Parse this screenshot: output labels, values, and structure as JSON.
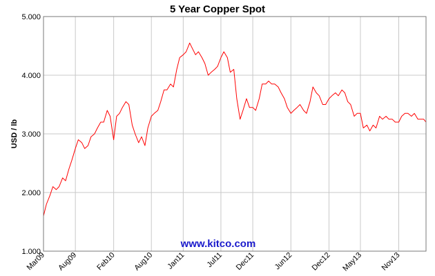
{
  "chart_data": {
    "type": "line",
    "title": "5 Year Copper Spot",
    "xlabel": "",
    "ylabel": "USD / lb",
    "ylim": [
      1.0,
      5.0
    ],
    "yticks": [
      "1.000",
      "2.000",
      "3.000",
      "4.000",
      "5.000"
    ],
    "xlim": [
      "2009-03-01",
      "2014-03-12"
    ],
    "xticks": [
      {
        "label": "Mar09",
        "date": "2009-03-01"
      },
      {
        "label": "Aug09",
        "date": "2009-08-01"
      },
      {
        "label": "Feb10",
        "date": "2010-02-01"
      },
      {
        "label": "Aug10",
        "date": "2010-08-01"
      },
      {
        "label": "Jan11",
        "date": "2011-01-01"
      },
      {
        "label": "Jul11",
        "date": "2011-07-01"
      },
      {
        "label": "Dec11",
        "date": "2011-12-01"
      },
      {
        "label": "Jun12",
        "date": "2012-06-01"
      },
      {
        "label": "Dec12",
        "date": "2012-12-01"
      },
      {
        "label": "May13",
        "date": "2013-05-01"
      },
      {
        "label": "Nov13",
        "date": "2013-11-01"
      }
    ],
    "grid": true,
    "legend": "none",
    "series": [
      {
        "color": "#ff0000",
        "x": [
          "2009-03-01",
          "2009-03-15",
          "2009-04-01",
          "2009-04-15",
          "2009-05-01",
          "2009-05-15",
          "2009-06-01",
          "2009-06-15",
          "2009-07-01",
          "2009-07-15",
          "2009-08-01",
          "2009-08-15",
          "2009-09-01",
          "2009-09-15",
          "2009-10-01",
          "2009-10-15",
          "2009-11-01",
          "2009-11-15",
          "2009-12-01",
          "2009-12-15",
          "2010-01-01",
          "2010-01-15",
          "2010-02-01",
          "2010-02-15",
          "2010-03-01",
          "2010-03-15",
          "2010-04-01",
          "2010-04-15",
          "2010-05-01",
          "2010-05-15",
          "2010-06-01",
          "2010-06-15",
          "2010-07-01",
          "2010-07-15",
          "2010-08-01",
          "2010-08-15",
          "2010-09-01",
          "2010-09-15",
          "2010-10-01",
          "2010-10-15",
          "2010-11-01",
          "2010-11-15",
          "2010-12-01",
          "2010-12-15",
          "2011-01-01",
          "2011-01-15",
          "2011-02-01",
          "2011-02-15",
          "2011-03-01",
          "2011-03-15",
          "2011-04-01",
          "2011-04-15",
          "2011-05-01",
          "2011-05-15",
          "2011-06-01",
          "2011-06-15",
          "2011-07-01",
          "2011-07-15",
          "2011-08-01",
          "2011-08-15",
          "2011-09-01",
          "2011-09-15",
          "2011-10-01",
          "2011-10-15",
          "2011-11-01",
          "2011-11-15",
          "2011-12-01",
          "2011-12-15",
          "2012-01-01",
          "2012-01-15",
          "2012-02-01",
          "2012-02-15",
          "2012-03-01",
          "2012-03-15",
          "2012-04-01",
          "2012-04-15",
          "2012-05-01",
          "2012-05-15",
          "2012-06-01",
          "2012-06-15",
          "2012-07-01",
          "2012-07-15",
          "2012-08-01",
          "2012-08-15",
          "2012-09-01",
          "2012-09-15",
          "2012-10-01",
          "2012-10-15",
          "2012-11-01",
          "2012-11-15",
          "2012-12-01",
          "2012-12-15",
          "2013-01-01",
          "2013-01-15",
          "2013-02-01",
          "2013-02-15",
          "2013-03-01",
          "2013-03-15",
          "2013-04-01",
          "2013-04-15",
          "2013-05-01",
          "2013-05-15",
          "2013-06-01",
          "2013-06-15",
          "2013-07-01",
          "2013-07-15",
          "2013-08-01",
          "2013-08-15",
          "2013-09-01",
          "2013-09-15",
          "2013-10-01",
          "2013-10-15",
          "2013-11-01",
          "2013-11-15",
          "2013-12-01",
          "2013-12-15",
          "2014-01-01",
          "2014-01-15",
          "2014-02-01",
          "2014-02-15",
          "2014-03-01",
          "2014-03-12"
        ],
        "y": [
          1.6,
          1.8,
          1.95,
          2.1,
          2.05,
          2.1,
          2.25,
          2.2,
          2.4,
          2.55,
          2.75,
          2.9,
          2.85,
          2.75,
          2.8,
          2.95,
          3.0,
          3.1,
          3.2,
          3.2,
          3.4,
          3.3,
          2.9,
          3.3,
          3.35,
          3.45,
          3.55,
          3.5,
          3.15,
          3.0,
          2.85,
          2.95,
          2.8,
          3.1,
          3.3,
          3.35,
          3.4,
          3.55,
          3.75,
          3.75,
          3.85,
          3.8,
          4.1,
          4.3,
          4.35,
          4.4,
          4.55,
          4.45,
          4.35,
          4.4,
          4.3,
          4.2,
          4.0,
          4.05,
          4.1,
          4.15,
          4.3,
          4.4,
          4.3,
          4.05,
          4.1,
          3.6,
          3.25,
          3.4,
          3.6,
          3.45,
          3.45,
          3.4,
          3.6,
          3.85,
          3.85,
          3.9,
          3.85,
          3.85,
          3.8,
          3.7,
          3.6,
          3.45,
          3.35,
          3.4,
          3.45,
          3.5,
          3.4,
          3.35,
          3.55,
          3.8,
          3.7,
          3.65,
          3.5,
          3.5,
          3.6,
          3.65,
          3.7,
          3.65,
          3.75,
          3.7,
          3.55,
          3.5,
          3.3,
          3.35,
          3.35,
          3.1,
          3.15,
          3.05,
          3.15,
          3.1,
          3.3,
          3.25,
          3.3,
          3.25,
          3.25,
          3.2,
          3.2,
          3.3,
          3.35,
          3.35,
          3.3,
          3.35,
          3.25,
          3.25,
          3.25,
          3.2
        ]
      }
    ]
  },
  "watermark": "www.kitco.com"
}
